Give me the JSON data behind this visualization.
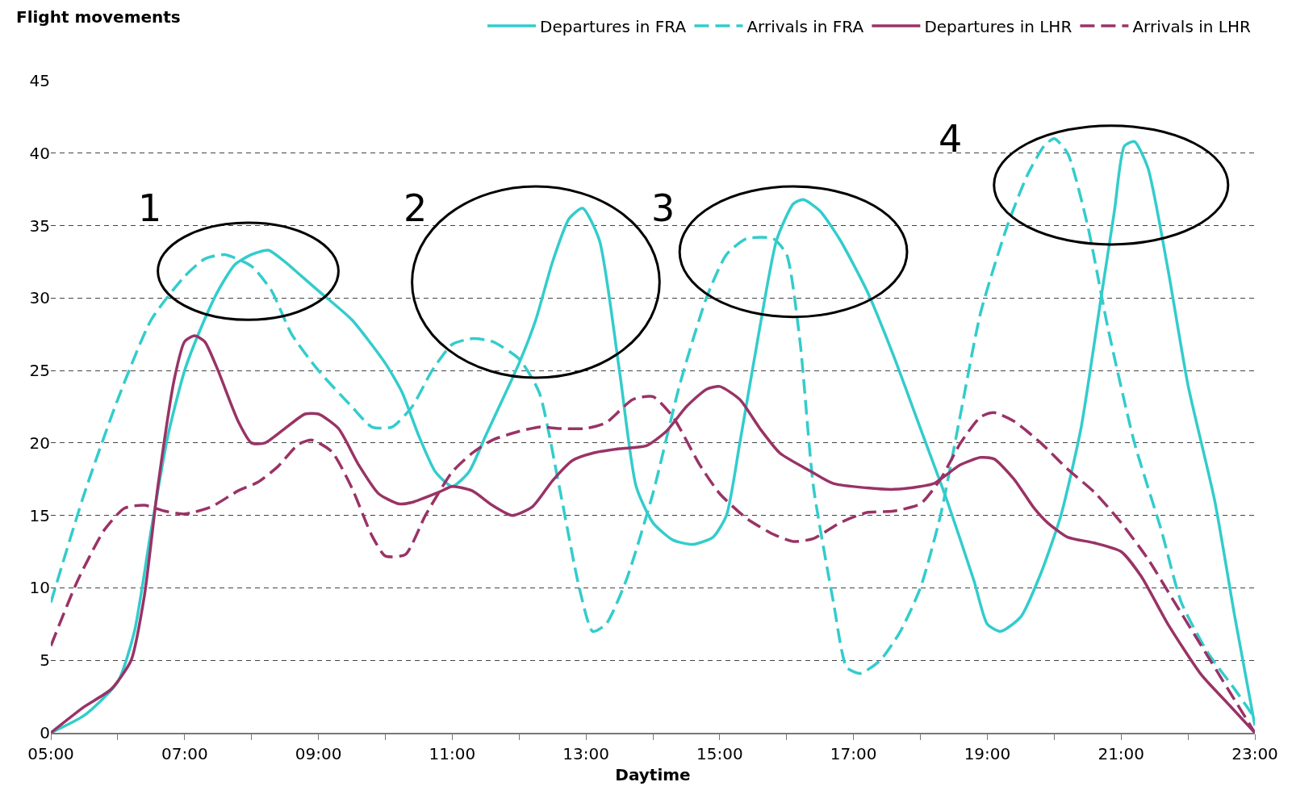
{
  "chart_data": {
    "type": "line",
    "ylabel": "Flight movements",
    "xlabel": "Daytime",
    "xlim": [
      5,
      23
    ],
    "xticks": [
      {
        "value": 5,
        "label": "05:00"
      },
      {
        "value": 6,
        "label": null
      },
      {
        "value": 7,
        "label": "07:00"
      },
      {
        "value": 8,
        "label": null
      },
      {
        "value": 9,
        "label": "09:00"
      },
      {
        "value": 10,
        "label": null
      },
      {
        "value": 11,
        "label": "11:00"
      },
      {
        "value": 12,
        "label": null
      },
      {
        "value": 13,
        "label": "13:00"
      },
      {
        "value": 14,
        "label": null
      },
      {
        "value": 15,
        "label": "15:00"
      },
      {
        "value": 16,
        "label": null
      },
      {
        "value": 17,
        "label": "17:00"
      },
      {
        "value": 18,
        "label": null
      },
      {
        "value": 19,
        "label": "19:00"
      },
      {
        "value": 20,
        "label": null
      },
      {
        "value": 21,
        "label": "21:00"
      },
      {
        "value": 22,
        "label": null
      },
      {
        "value": 23,
        "label": "23:00"
      }
    ],
    "ylim": [
      0,
      45
    ],
    "yticks": [
      0,
      5,
      10,
      15,
      20,
      25,
      30,
      35,
      40,
      45
    ],
    "grid": "y",
    "legend": "top right",
    "marker": "none",
    "annotations": [
      "1",
      "2",
      "3",
      "4"
    ],
    "series": [
      {
        "name": "Departures in FRA",
        "color": "#33cccc",
        "line_style": "solid",
        "x": [
          5,
          5.5,
          6,
          6.25,
          6.5,
          6.75,
          7,
          7.25,
          7.5,
          7.75,
          8,
          8.25,
          8.5,
          8.75,
          9,
          9.5,
          10,
          10.25,
          10.5,
          10.75,
          11,
          11.25,
          11.5,
          12,
          12.25,
          12.5,
          12.75,
          12.95,
          13.2,
          13.5,
          13.75,
          14,
          14.3,
          14.6,
          14.9,
          15.1,
          15.3,
          15.6,
          15.85,
          16.1,
          16.25,
          16.5,
          16.8,
          17.2,
          17.6,
          18,
          18.4,
          18.8,
          19,
          19.2,
          19.5,
          19.8,
          20.1,
          20.4,
          20.7,
          20.9,
          21.05,
          21.2,
          21.4,
          21.7,
          22,
          22.4,
          22.7,
          23
        ],
        "values": [
          0,
          1.2,
          3.5,
          7,
          14,
          20.5,
          25,
          28,
          30.5,
          32.3,
          33,
          33.3,
          32.5,
          31.5,
          30.5,
          28.5,
          25.5,
          23.5,
          20.5,
          18,
          17,
          18,
          20.5,
          25.5,
          28.5,
          32.5,
          35.5,
          36.2,
          34,
          25,
          17,
          14.5,
          13.3,
          13,
          13.5,
          15,
          20,
          28,
          34,
          36.5,
          36.8,
          36,
          34,
          30.5,
          26,
          21,
          16,
          10.5,
          7.5,
          7,
          8,
          11,
          15,
          21,
          30,
          36,
          40.5,
          40.8,
          39,
          32,
          24,
          16,
          8,
          0.5
        ]
      },
      {
        "name": "Arrivals in FRA",
        "color": "#33cccc",
        "line_style": "dashed",
        "x": [
          5,
          5.5,
          6,
          6.5,
          7,
          7.3,
          7.6,
          8,
          8.3,
          8.6,
          9,
          9.5,
          9.8,
          10.1,
          10.4,
          10.7,
          11,
          11.3,
          11.6,
          12,
          12.3,
          12.6,
          12.9,
          13.1,
          13.3,
          13.6,
          14,
          14.4,
          14.8,
          15.1,
          15.4,
          15.8,
          16,
          16.2,
          16.4,
          16.7,
          16.9,
          17.1,
          17.4,
          17.7,
          18,
          18.3,
          18.6,
          18.9,
          19.3,
          19.6,
          19.85,
          20,
          20.2,
          20.5,
          20.8,
          21.2,
          21.6,
          21.9,
          22.3,
          22.7,
          23
        ],
        "values": [
          9,
          16.5,
          23,
          28.5,
          31.5,
          32.7,
          33,
          32.2,
          30.5,
          27.5,
          25,
          22.5,
          21.1,
          21.1,
          22.5,
          25,
          26.8,
          27.2,
          27,
          25.8,
          23.5,
          17,
          10,
          7,
          7.5,
          10.5,
          16.5,
          24,
          30,
          33,
          34.1,
          34.1,
          33,
          27,
          17,
          9,
          4.5,
          4.1,
          5,
          7,
          10,
          15,
          22,
          29,
          35,
          38.5,
          40.5,
          41,
          40,
          35,
          28,
          20,
          14,
          9,
          5.5,
          3,
          1
        ]
      },
      {
        "name": "Departures in LHR",
        "color": "#993366",
        "line_style": "solid",
        "x": [
          5,
          5.5,
          5.9,
          6.2,
          6.4,
          6.6,
          6.85,
          7,
          7.15,
          7.3,
          7.5,
          7.8,
          8,
          8.2,
          8.5,
          8.8,
          9,
          9.3,
          9.6,
          9.9,
          10.2,
          10.4,
          10.8,
          11,
          11.3,
          11.6,
          11.9,
          12.2,
          12.5,
          12.8,
          13.1,
          13.5,
          13.9,
          14.2,
          14.5,
          14.8,
          15,
          15.3,
          15.6,
          15.9,
          16.3,
          16.7,
          17.2,
          17.6,
          18,
          18.2,
          18.6,
          18.9,
          19.1,
          19.4,
          19.7,
          19.9,
          20.2,
          20.6,
          21,
          21.3,
          21.7,
          22.2,
          22.6,
          23
        ],
        "values": [
          0,
          1.8,
          3,
          5,
          9.5,
          17,
          24.5,
          27,
          27.4,
          27,
          25,
          21.5,
          20,
          20,
          21,
          22,
          22,
          21,
          18.5,
          16.5,
          15.8,
          15.9,
          16.6,
          17,
          16.7,
          15.7,
          15,
          15.6,
          17.4,
          18.8,
          19.3,
          19.6,
          19.8,
          20.8,
          22.5,
          23.7,
          23.9,
          23,
          21,
          19.3,
          18.2,
          17.2,
          16.9,
          16.8,
          17,
          17.2,
          18.5,
          19,
          18.9,
          17.5,
          15.5,
          14.5,
          13.5,
          13.1,
          12.5,
          10.8,
          7.5,
          4,
          2,
          0
        ]
      },
      {
        "name": "Arrivals in LHR",
        "color": "#993366",
        "line_style": "dashed",
        "x": [
          5,
          5.4,
          5.8,
          6.1,
          6.4,
          6.7,
          7,
          7.4,
          7.8,
          8.1,
          8.4,
          8.7,
          8.9,
          9.2,
          9.5,
          9.8,
          10,
          10.3,
          10.6,
          11,
          11.3,
          11.6,
          12,
          12.3,
          12.6,
          13,
          13.3,
          13.7,
          14,
          14.3,
          14.7,
          15,
          15.4,
          15.8,
          16.1,
          16.4,
          16.8,
          17.2,
          17.6,
          18,
          18.3,
          18.6,
          18.9,
          19.1,
          19.4,
          19.8,
          20.2,
          20.6,
          21,
          21.4,
          21.8,
          22.2,
          22.6,
          23
        ],
        "values": [
          6,
          10.5,
          14,
          15.5,
          15.7,
          15.3,
          15.1,
          15.6,
          16.7,
          17.3,
          18.4,
          19.9,
          20.2,
          19.4,
          16.9,
          13.6,
          12.2,
          12.3,
          15,
          18,
          19.3,
          20.2,
          20.8,
          21.1,
          21,
          21,
          21.4,
          23,
          23.2,
          21.8,
          18.5,
          16.5,
          14.8,
          13.7,
          13.2,
          13.4,
          14.5,
          15.2,
          15.3,
          15.8,
          17.5,
          20,
          21.8,
          22.1,
          21.5,
          20,
          18.2,
          16.6,
          14.5,
          12,
          9,
          6,
          3,
          0
        ]
      }
    ]
  }
}
